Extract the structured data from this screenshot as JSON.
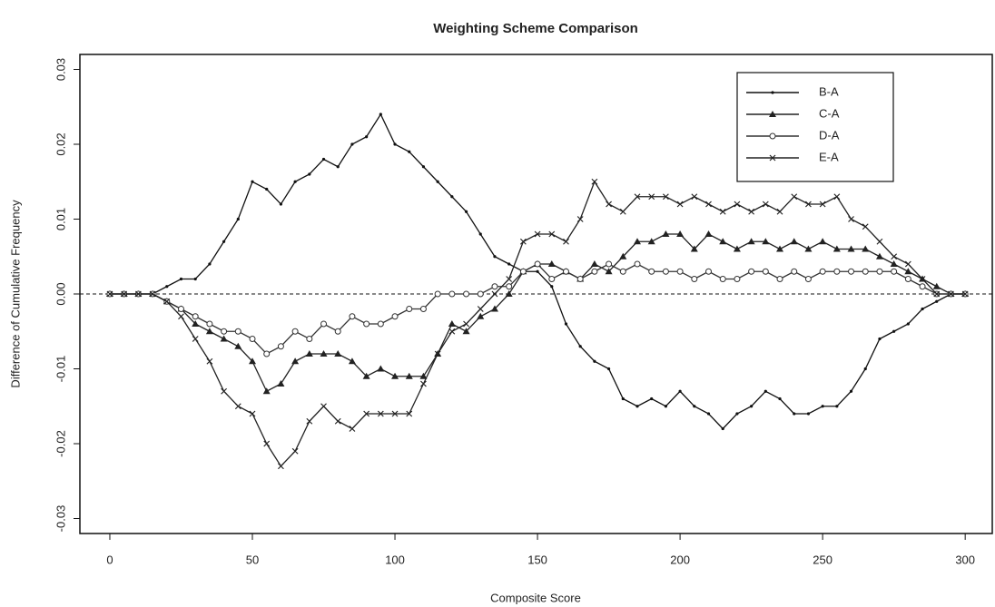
{
  "chart_data": {
    "type": "line",
    "title": "Weighting Scheme Comparison",
    "x_label": "Composite Score",
    "y_label": "Difference of Cumulative Frequency",
    "x": [
      0,
      5,
      10,
      15,
      20,
      25,
      30,
      35,
      40,
      45,
      50,
      55,
      60,
      65,
      70,
      75,
      80,
      85,
      90,
      95,
      100,
      105,
      110,
      115,
      120,
      125,
      130,
      135,
      140,
      145,
      150,
      155,
      160,
      165,
      170,
      175,
      180,
      185,
      190,
      195,
      200,
      205,
      210,
      215,
      220,
      225,
      230,
      235,
      240,
      245,
      250,
      255,
      260,
      265,
      270,
      275,
      280,
      285,
      290,
      295,
      300
    ],
    "series": [
      {
        "name": "B-A",
        "color": "#111111",
        "marker": "dot",
        "values": [
          0,
          0,
          0,
          0,
          0.001,
          0.002,
          0.002,
          0.004,
          0.007,
          0.01,
          0.015,
          0.014,
          0.012,
          0.015,
          0.016,
          0.018,
          0.017,
          0.02,
          0.021,
          0.024,
          0.02,
          0.019,
          0.017,
          0.015,
          0.013,
          0.011,
          0.008,
          0.005,
          0.004,
          0.003,
          0.003,
          0.001,
          -0.004,
          -0.007,
          -0.009,
          -0.01,
          -0.014,
          -0.015,
          -0.014,
          -0.015,
          -0.013,
          -0.015,
          -0.016,
          -0.018,
          -0.016,
          -0.015,
          -0.013,
          -0.014,
          -0.016,
          -0.016,
          -0.015,
          -0.015,
          -0.013,
          -0.01,
          -0.006,
          -0.005,
          -0.004,
          -0.002,
          -0.001,
          0,
          0
        ]
      },
      {
        "name": "C-A",
        "color": "#222222",
        "marker": "triangle",
        "values": [
          0,
          0,
          0,
          0,
          -0.001,
          -0.002,
          -0.004,
          -0.005,
          -0.006,
          -0.007,
          -0.009,
          -0.013,
          -0.012,
          -0.009,
          -0.008,
          -0.008,
          -0.008,
          -0.009,
          -0.011,
          -0.01,
          -0.011,
          -0.011,
          -0.011,
          -0.008,
          -0.004,
          -0.005,
          -0.003,
          -0.002,
          0,
          0.003,
          0.004,
          0.004,
          0.003,
          0.002,
          0.004,
          0.003,
          0.005,
          0.007,
          0.007,
          0.008,
          0.008,
          0.006,
          0.008,
          0.007,
          0.006,
          0.007,
          0.007,
          0.006,
          0.007,
          0.006,
          0.007,
          0.006,
          0.006,
          0.006,
          0.005,
          0.004,
          0.003,
          0.002,
          0.001,
          0,
          0
        ]
      },
      {
        "name": "D-A",
        "color": "#333333",
        "marker": "circle",
        "values": [
          0,
          0,
          0,
          0,
          -0.001,
          -0.002,
          -0.003,
          -0.004,
          -0.005,
          -0.005,
          -0.006,
          -0.008,
          -0.007,
          -0.005,
          -0.006,
          -0.004,
          -0.005,
          -0.003,
          -0.004,
          -0.004,
          -0.003,
          -0.002,
          -0.002,
          0,
          0,
          0,
          0,
          0.001,
          0.001,
          0.003,
          0.004,
          0.002,
          0.003,
          0.002,
          0.003,
          0.004,
          0.003,
          0.004,
          0.003,
          0.003,
          0.003,
          0.002,
          0.003,
          0.002,
          0.002,
          0.003,
          0.003,
          0.002,
          0.003,
          0.002,
          0.003,
          0.003,
          0.003,
          0.003,
          0.003,
          0.003,
          0.002,
          0.001,
          0,
          0,
          0
        ]
      },
      {
        "name": "E-A",
        "color": "#222222",
        "marker": "cross",
        "values": [
          0,
          0,
          0,
          0,
          -0.001,
          -0.003,
          -0.006,
          -0.009,
          -0.013,
          -0.015,
          -0.016,
          -0.02,
          -0.023,
          -0.021,
          -0.017,
          -0.015,
          -0.017,
          -0.018,
          -0.016,
          -0.016,
          -0.016,
          -0.016,
          -0.012,
          -0.008,
          -0.005,
          -0.004,
          -0.002,
          0,
          0.002,
          0.007,
          0.008,
          0.008,
          0.007,
          0.01,
          0.015,
          0.012,
          0.011,
          0.013,
          0.013,
          0.013,
          0.012,
          0.013,
          0.012,
          0.011,
          0.012,
          0.011,
          0.012,
          0.011,
          0.013,
          0.012,
          0.012,
          0.013,
          0.01,
          0.009,
          0.007,
          0.005,
          0.004,
          0.002,
          0,
          0,
          0
        ]
      }
    ],
    "xlim": [
      -10.5,
      309.5
    ],
    "xticks": [
      0,
      50,
      100,
      150,
      200,
      250,
      300
    ],
    "ylim": [
      -0.032,
      0.032
    ],
    "yticks": [
      -0.03,
      -0.02,
      -0.01,
      {
        "value": 0,
        "label": "0.00"
      },
      0.01,
      0.02,
      0.03
    ],
    "hline": 0,
    "legend": "top-right"
  }
}
